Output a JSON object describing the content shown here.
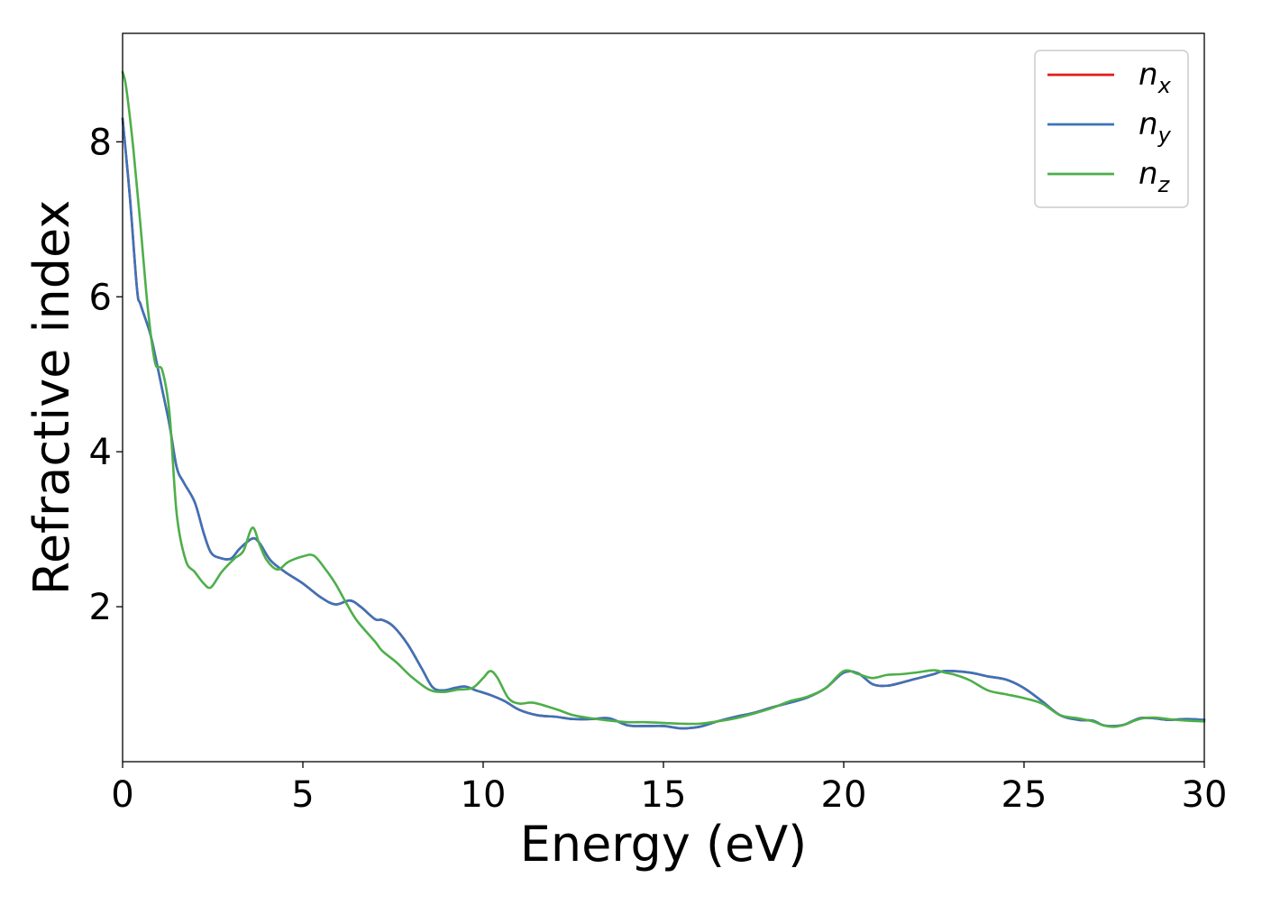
{
  "chart_data": {
    "type": "line",
    "title": "",
    "xlabel": "Energy (eV)",
    "ylabel": "Refractive index",
    "xlim": [
      0,
      30
    ],
    "ylim": [
      0,
      9.4
    ],
    "xticks": [
      0,
      5,
      10,
      15,
      20,
      25,
      30
    ],
    "xtick_labels": [
      "0",
      "5",
      "10",
      "15",
      "20",
      "25",
      "30"
    ],
    "yticks": [
      2,
      4,
      6,
      8
    ],
    "ytick_labels": [
      "2",
      "4",
      "6",
      "8"
    ],
    "grid": false,
    "legend_position": "top-right",
    "series": [
      {
        "name": "n_x",
        "legend_base": "n",
        "legend_sub": "x",
        "color": "#e41a1c",
        "x": [
          0,
          0.2,
          0.4,
          0.5,
          0.75,
          0.9,
          1.1,
          1.3,
          1.5,
          1.7,
          2.0,
          2.25,
          2.45,
          2.7,
          3.0,
          3.25,
          3.6,
          3.8,
          4.1,
          4.5,
          5.0,
          5.5,
          5.9,
          6.3,
          6.6,
          7.0,
          7.2,
          7.5,
          7.9,
          8.3,
          8.6,
          8.9,
          9.2,
          9.5,
          9.8,
          10.2,
          10.6,
          11.0,
          11.5,
          12.0,
          12.5,
          13.0,
          13.5,
          14.0,
          14.5,
          15.0,
          15.5,
          16.0,
          16.5,
          17.0,
          17.5,
          18.0,
          18.5,
          19.0,
          19.5,
          20.0,
          20.4,
          20.8,
          21.2,
          21.6,
          22.0,
          22.5,
          22.8,
          23.5,
          24.0,
          24.5,
          25.0,
          25.5,
          26.0,
          26.5,
          26.9,
          27.2,
          27.5,
          27.8,
          28.2,
          28.6,
          29.0,
          29.5,
          30.0
        ],
        "y": [
          8.3,
          7.3,
          6.1,
          5.9,
          5.55,
          5.25,
          4.8,
          4.35,
          3.8,
          3.6,
          3.35,
          2.95,
          2.7,
          2.63,
          2.62,
          2.75,
          2.88,
          2.82,
          2.6,
          2.45,
          2.3,
          2.12,
          2.03,
          2.08,
          2.0,
          1.84,
          1.83,
          1.75,
          1.52,
          1.2,
          0.96,
          0.92,
          0.95,
          0.97,
          0.92,
          0.86,
          0.78,
          0.67,
          0.6,
          0.58,
          0.55,
          0.55,
          0.56,
          0.47,
          0.46,
          0.46,
          0.43,
          0.45,
          0.52,
          0.58,
          0.63,
          0.7,
          0.76,
          0.83,
          0.95,
          1.15,
          1.14,
          1.0,
          0.98,
          1.02,
          1.07,
          1.13,
          1.17,
          1.15,
          1.1,
          1.06,
          0.95,
          0.78,
          0.6,
          0.54,
          0.53,
          0.47,
          0.46,
          0.48,
          0.56,
          0.56,
          0.54,
          0.55,
          0.54
        ]
      },
      {
        "name": "n_y",
        "legend_base": "n",
        "legend_sub": "y",
        "color": "#3b73b9",
        "x": [
          0,
          0.2,
          0.4,
          0.5,
          0.75,
          0.9,
          1.1,
          1.3,
          1.5,
          1.7,
          2.0,
          2.25,
          2.45,
          2.7,
          3.0,
          3.25,
          3.6,
          3.8,
          4.1,
          4.5,
          5.0,
          5.5,
          5.9,
          6.3,
          6.6,
          7.0,
          7.2,
          7.5,
          7.9,
          8.3,
          8.6,
          8.9,
          9.2,
          9.5,
          9.8,
          10.2,
          10.6,
          11.0,
          11.5,
          12.0,
          12.5,
          13.0,
          13.5,
          14.0,
          14.5,
          15.0,
          15.5,
          16.0,
          16.5,
          17.0,
          17.5,
          18.0,
          18.5,
          19.0,
          19.5,
          20.0,
          20.4,
          20.8,
          21.2,
          21.6,
          22.0,
          22.5,
          22.8,
          23.5,
          24.0,
          24.5,
          25.0,
          25.5,
          26.0,
          26.5,
          26.9,
          27.2,
          27.5,
          27.8,
          28.2,
          28.6,
          29.0,
          29.5,
          30.0
        ],
        "y": [
          8.3,
          7.3,
          6.1,
          5.9,
          5.55,
          5.25,
          4.8,
          4.35,
          3.8,
          3.6,
          3.35,
          2.95,
          2.7,
          2.63,
          2.62,
          2.75,
          2.88,
          2.82,
          2.6,
          2.45,
          2.3,
          2.12,
          2.03,
          2.08,
          2.0,
          1.84,
          1.83,
          1.75,
          1.52,
          1.2,
          0.96,
          0.92,
          0.95,
          0.97,
          0.92,
          0.86,
          0.78,
          0.67,
          0.6,
          0.58,
          0.55,
          0.55,
          0.56,
          0.47,
          0.46,
          0.46,
          0.43,
          0.45,
          0.52,
          0.58,
          0.63,
          0.7,
          0.76,
          0.83,
          0.95,
          1.15,
          1.14,
          1.0,
          0.98,
          1.02,
          1.07,
          1.13,
          1.17,
          1.15,
          1.1,
          1.06,
          0.95,
          0.78,
          0.6,
          0.54,
          0.53,
          0.47,
          0.46,
          0.48,
          0.56,
          0.56,
          0.54,
          0.55,
          0.54
        ]
      },
      {
        "name": "n_z",
        "legend_base": "n",
        "legend_sub": "z",
        "color": "#4daf4a",
        "x": [
          0,
          0.1,
          0.3,
          0.5,
          0.7,
          0.9,
          1.1,
          1.3,
          1.5,
          1.75,
          2.0,
          2.25,
          2.45,
          2.75,
          3.1,
          3.35,
          3.6,
          3.8,
          4.0,
          4.3,
          4.6,
          5.0,
          5.3,
          5.6,
          5.9,
          6.2,
          6.5,
          7.0,
          7.2,
          7.6,
          8.0,
          8.5,
          8.9,
          9.3,
          9.7,
          10.0,
          10.2,
          10.4,
          10.7,
          11.0,
          11.4,
          12.0,
          12.5,
          13.0,
          13.5,
          14.0,
          14.5,
          15.0,
          15.5,
          16.0,
          16.5,
          17.0,
          17.5,
          18.0,
          18.5,
          19.0,
          19.5,
          20.0,
          20.4,
          20.8,
          21.2,
          21.6,
          22.0,
          22.5,
          22.8,
          23.1,
          23.5,
          24.0,
          24.5,
          25.0,
          25.5,
          26.0,
          26.5,
          26.9,
          27.2,
          27.5,
          27.8,
          28.2,
          28.6,
          29.0,
          29.5,
          30.0
        ],
        "y": [
          8.9,
          8.7,
          7.9,
          6.9,
          5.85,
          5.15,
          5.05,
          4.5,
          3.2,
          2.6,
          2.45,
          2.3,
          2.25,
          2.45,
          2.62,
          2.72,
          3.02,
          2.8,
          2.6,
          2.48,
          2.58,
          2.65,
          2.66,
          2.5,
          2.3,
          2.05,
          1.82,
          1.55,
          1.43,
          1.28,
          1.1,
          0.93,
          0.9,
          0.93,
          0.95,
          1.08,
          1.17,
          1.08,
          0.82,
          0.75,
          0.76,
          0.68,
          0.6,
          0.56,
          0.53,
          0.51,
          0.51,
          0.5,
          0.49,
          0.49,
          0.52,
          0.56,
          0.62,
          0.69,
          0.78,
          0.84,
          0.95,
          1.17,
          1.13,
          1.08,
          1.12,
          1.13,
          1.15,
          1.18,
          1.15,
          1.12,
          1.05,
          0.92,
          0.87,
          0.82,
          0.75,
          0.6,
          0.56,
          0.52,
          0.47,
          0.45,
          0.48,
          0.55,
          0.57,
          0.55,
          0.53,
          0.52
        ]
      }
    ]
  }
}
